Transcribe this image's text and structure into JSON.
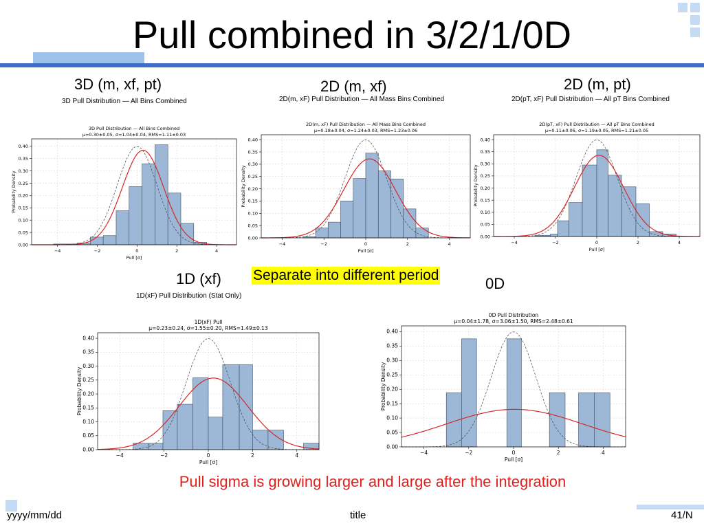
{
  "slide": {
    "title": "Pull combined in 3/2/1/0D",
    "labels": {
      "d3": "3D (m, xf, pt)",
      "d2_mxf": "2D (m, xf)",
      "d2_mpt": "2D (m, pt)",
      "d1": "1D (xf)",
      "d0": "0D"
    },
    "highlight": "Separate into different period",
    "conclusion": "Pull sigma is growing larger and large after the integration",
    "footer": {
      "date": "yyyy/mm/dd",
      "title": "title",
      "page": "41/N"
    },
    "colors": {
      "accent_band": "#3b6fc6",
      "bar_fill": "#9cb8d6",
      "fit_curve": "#d62728",
      "highlight": "#ffff00",
      "conclusion_text": "#e0201c"
    }
  },
  "chart_data": [
    {
      "id": "c3d",
      "type": "bar",
      "suptitle": "3D Pull Distribution — All Bins Combined",
      "title": "3D Pull Distribution — All Bins Combined",
      "subtitle": "μ=0.30±0.05,  σ=1.04±0.04,  RMS=1.11±0.03",
      "xlabel": "Pull [σ]",
      "ylabel": "Probability Density",
      "xlim": [
        -5.3,
        5.0
      ],
      "ylim": [
        0,
        0.43
      ],
      "xticks": [
        -4,
        -2,
        0,
        2,
        4
      ],
      "yticks": [
        0.0,
        0.05,
        0.1,
        0.15,
        0.2,
        0.25,
        0.3,
        0.35,
        0.4
      ],
      "bins": [
        [
          -4.2,
          -3.0,
          0.003
        ],
        [
          -3.0,
          -2.35,
          0.007
        ],
        [
          -2.35,
          -1.7,
          0.031
        ],
        [
          -1.7,
          -1.05,
          0.037
        ],
        [
          -1.05,
          -0.4,
          0.138
        ],
        [
          -0.4,
          0.25,
          0.236
        ],
        [
          0.25,
          0.9,
          0.329
        ],
        [
          0.9,
          1.55,
          0.406
        ],
        [
          1.55,
          2.2,
          0.21
        ],
        [
          2.2,
          2.85,
          0.087
        ],
        [
          2.85,
          3.5,
          0.01
        ]
      ],
      "fit": {
        "mu": 0.3,
        "sigma": 1.04
      },
      "reference": {
        "mu": 0,
        "sigma": 1
      },
      "grid": true
    },
    {
      "id": "c2a",
      "type": "bar",
      "suptitle": "2D(m, xF) Pull Distribution — All Mass Bins Combined",
      "title": "2D(m, xF) Pull Distribution — All Mass Bins Combined",
      "subtitle": "μ=0.18±0.04,  σ=1.24±0.03,  RMS=1.23±0.06",
      "xlabel": "Pull [σ]",
      "ylabel": "Probability Density",
      "xlim": [
        -5.0,
        5.0
      ],
      "ylim": [
        0,
        0.42
      ],
      "xticks": [
        -4,
        -2,
        0,
        2,
        4
      ],
      "yticks": [
        0.0,
        0.05,
        0.1,
        0.15,
        0.2,
        0.25,
        0.3,
        0.35,
        0.4
      ],
      "bins": [
        [
          -3.0,
          -2.4,
          0.005
        ],
        [
          -2.4,
          -1.8,
          0.04
        ],
        [
          -1.8,
          -1.2,
          0.064
        ],
        [
          -1.2,
          -0.6,
          0.15
        ],
        [
          -0.6,
          0.0,
          0.242
        ],
        [
          0.0,
          0.6,
          0.345
        ],
        [
          0.6,
          1.2,
          0.273
        ],
        [
          1.2,
          1.8,
          0.24
        ],
        [
          1.8,
          2.4,
          0.118
        ],
        [
          2.4,
          3.0,
          0.04
        ]
      ],
      "fit": {
        "mu": 0.18,
        "sigma": 1.24
      },
      "reference": {
        "mu": 0,
        "sigma": 1
      },
      "grid": true
    },
    {
      "id": "c2b",
      "type": "bar",
      "suptitle": "2D(pT, xF) Pull Distribution — All pT Bins Combined",
      "title": "2D(pT, xF) Pull Distribution — All pT Bins Combined",
      "subtitle": "μ=0.11±0.06,  σ=1.19±0.05,  RMS=1.21±0.05",
      "xlabel": "Pull [σ]",
      "ylabel": "Probability Density",
      "xlim": [
        -5.0,
        5.0
      ],
      "ylim": [
        0,
        0.42
      ],
      "xticks": [
        -4,
        -2,
        0,
        2,
        4
      ],
      "yticks": [
        0.0,
        0.05,
        0.1,
        0.15,
        0.2,
        0.25,
        0.3,
        0.35,
        0.4
      ],
      "bins": [
        [
          -3.0,
          -2.25,
          0.005
        ],
        [
          -2.25,
          -1.9,
          0.01
        ],
        [
          -1.9,
          -1.35,
          0.065
        ],
        [
          -1.35,
          -0.7,
          0.14
        ],
        [
          -0.7,
          0.0,
          0.295
        ],
        [
          0.0,
          0.55,
          0.358
        ],
        [
          0.55,
          1.2,
          0.253
        ],
        [
          1.2,
          1.9,
          0.205
        ],
        [
          1.9,
          2.55,
          0.135
        ],
        [
          2.55,
          3.2,
          0.02
        ],
        [
          3.2,
          3.85,
          0.01
        ]
      ],
      "fit": {
        "mu": 0.11,
        "sigma": 1.19
      },
      "reference": {
        "mu": 0,
        "sigma": 1
      },
      "grid": true
    },
    {
      "id": "c1d",
      "type": "bar",
      "suptitle": "1D(xF) Pull Distribution (Stat Only)",
      "title": "1D(xF) Pull",
      "subtitle": "μ=0.23±0.24,  σ=1.55±0.20,  RMS=1.49±0.13",
      "xlabel": "Pull [σ]",
      "ylabel": "Probability Density",
      "xlim": [
        -5.0,
        5.0
      ],
      "ylim": [
        0,
        0.42
      ],
      "xticks": [
        -4,
        -2,
        0,
        2,
        4
      ],
      "yticks": [
        0.0,
        0.05,
        0.1,
        0.15,
        0.2,
        0.25,
        0.3,
        0.35,
        0.4
      ],
      "bins": [
        [
          -3.4,
          -2.7,
          0.023
        ],
        [
          -2.7,
          -2.05,
          0.023
        ],
        [
          -2.05,
          -1.4,
          0.14
        ],
        [
          -1.4,
          -0.7,
          0.163
        ],
        [
          -0.7,
          0.0,
          0.258
        ],
        [
          0.0,
          0.65,
          0.117
        ],
        [
          0.65,
          1.4,
          0.305
        ],
        [
          1.4,
          2.0,
          0.305
        ],
        [
          2.0,
          2.7,
          0.07
        ],
        [
          2.7,
          3.4,
          0.07
        ],
        [
          4.3,
          5.0,
          0.023
        ]
      ],
      "fit": {
        "mu": 0.23,
        "sigma": 1.55
      },
      "reference": {
        "mu": 0,
        "sigma": 1
      },
      "grid": true
    },
    {
      "id": "c0d",
      "type": "bar",
      "suptitle": "",
      "title": "0D Pull Distribution",
      "subtitle": "μ=0.04±1.78,  σ=3.06±1.50,  RMS=2.48±0.61",
      "xlabel": "Pull [σ]",
      "ylabel": "Probability Density",
      "xlim": [
        -5.0,
        5.0
      ],
      "ylim": [
        0,
        0.42
      ],
      "xticks": [
        -4,
        -2,
        0,
        2,
        4
      ],
      "yticks": [
        0.0,
        0.05,
        0.1,
        0.15,
        0.2,
        0.25,
        0.3,
        0.35,
        0.4
      ],
      "bins": [
        [
          -3.0,
          -2.32,
          0.188
        ],
        [
          -2.32,
          -1.65,
          0.375
        ],
        [
          -0.3,
          0.35,
          0.375
        ],
        [
          1.6,
          2.3,
          0.188
        ],
        [
          2.9,
          3.6,
          0.188
        ],
        [
          3.6,
          4.3,
          0.188
        ]
      ],
      "fit": {
        "mu": 0.04,
        "sigma": 3.06
      },
      "reference": {
        "mu": 0,
        "sigma": 1
      },
      "grid": true
    }
  ]
}
